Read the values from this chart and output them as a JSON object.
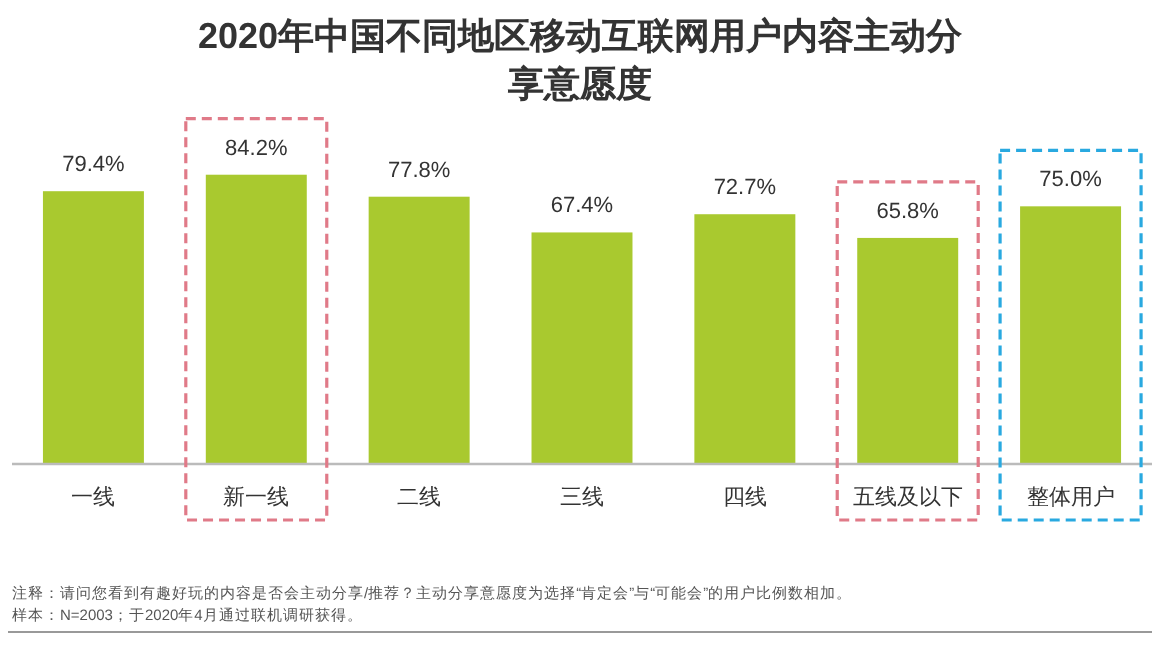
{
  "chart_data": {
    "type": "bar",
    "title": "2020年中国不同地区移动互联网用户内容主动分享意愿度",
    "categories": [
      "一线",
      "新一线",
      "二线",
      "三线",
      "四线",
      "五线及以下",
      "整体用户"
    ],
    "values": [
      79.4,
      84.2,
      77.8,
      67.4,
      72.7,
      65.8,
      75.0
    ],
    "value_labels": [
      "79.4%",
      "84.2%",
      "77.8%",
      "67.4%",
      "72.7%",
      "65.8%",
      "75.0%"
    ],
    "color": "#a9c92f",
    "annotations": [
      "注释：请问您看到有趣好玩的内容是否会主动分享/推荐？主动分享意愿度为选择“肯定会”与“可能会”的用户比例数相加。",
      "样本：N=2003；于2020年4月通过联机调研获得。"
    ]
  }
}
